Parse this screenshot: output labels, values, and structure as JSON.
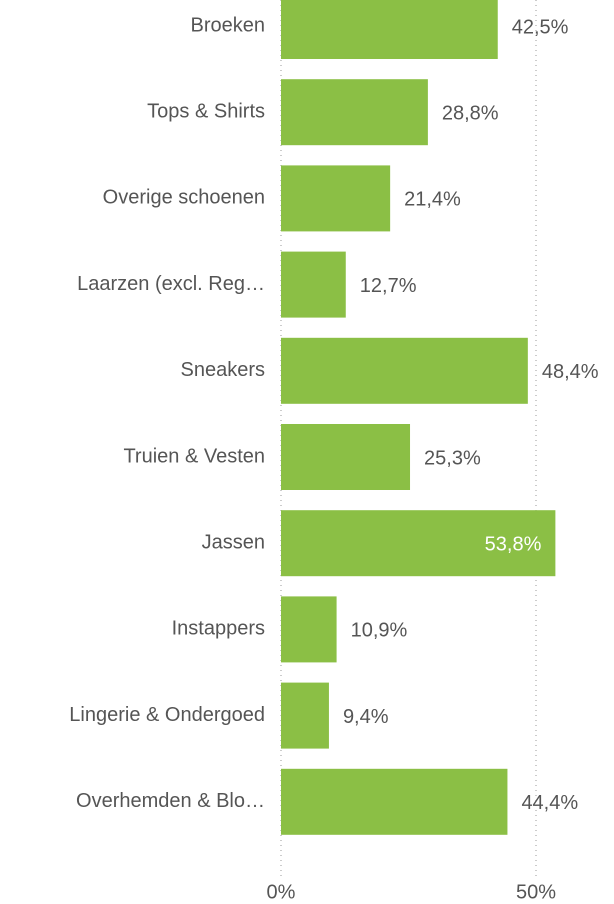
{
  "chart_data": {
    "type": "bar",
    "orientation": "horizontal",
    "categories": [
      "Broeken",
      "Tops & Shirts",
      "Overige schoenen",
      "Laarzen (excl. Reg…",
      "Sneakers",
      "Truien & Vesten",
      "Jassen",
      "Instappers",
      "Lingerie & Ondergoed",
      "Overhemden & Blo…"
    ],
    "values": [
      42.5,
      28.8,
      21.4,
      12.7,
      48.4,
      25.3,
      53.8,
      10.9,
      9.4,
      44.4
    ],
    "value_labels": [
      "42,5%",
      "28,8%",
      "21,4%",
      "12,7%",
      "48,4%",
      "25,3%",
      "53,8%",
      "10,9%",
      "9,4%",
      "44,4%"
    ],
    "color": "#8bbf45",
    "xlim": [
      0,
      60
    ],
    "xticks": [
      {
        "value": 0,
        "label": "0%"
      },
      {
        "value": 50,
        "label": "50%"
      }
    ],
    "grid": true
  }
}
